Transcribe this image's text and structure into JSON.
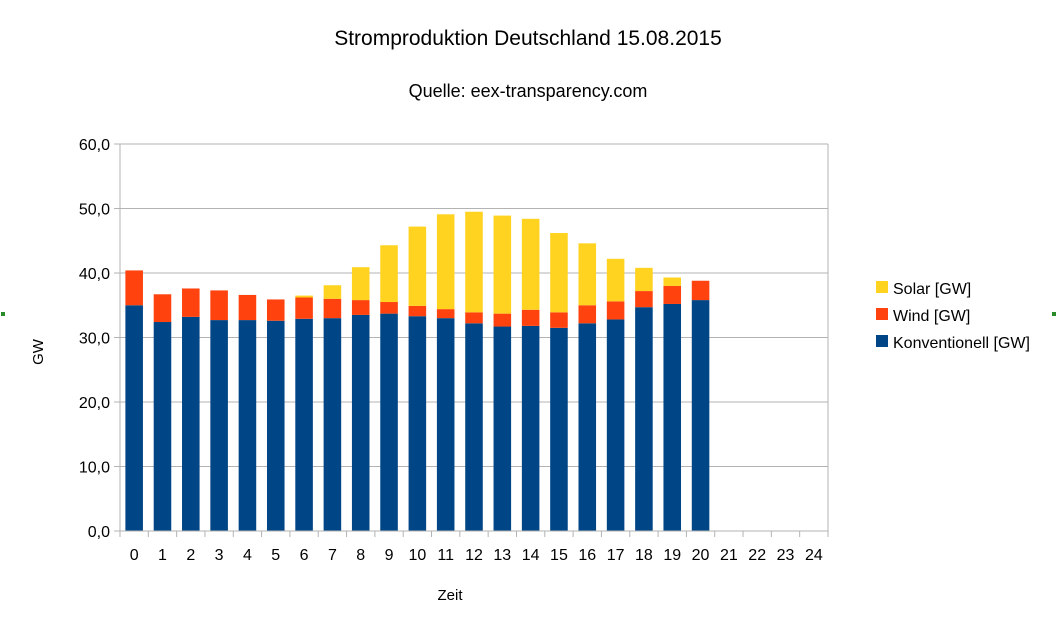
{
  "chart_data": {
    "type": "bar",
    "stacked": true,
    "title": "Stromproduktion Deutschland 15.08.2015",
    "subtitle": "Quelle: eex-transparency.com",
    "xlabel": "Zeit",
    "ylabel": "GW",
    "ylim": [
      0,
      60
    ],
    "ytick_step": 10,
    "yticks": [
      "0,0",
      "10,0",
      "20,0",
      "30,0",
      "40,0",
      "50,0",
      "60,0"
    ],
    "categories": [
      "0",
      "1",
      "2",
      "3",
      "4",
      "5",
      "6",
      "7",
      "8",
      "9",
      "10",
      "11",
      "12",
      "13",
      "14",
      "15",
      "16",
      "17",
      "18",
      "19",
      "20",
      "21",
      "22",
      "23",
      "24"
    ],
    "grid": true,
    "legend_position": "right",
    "series": [
      {
        "name": "Konventionell [GW]",
        "color": "#004586",
        "values": [
          35.0,
          32.4,
          33.2,
          32.7,
          32.7,
          32.6,
          32.9,
          33.0,
          33.5,
          33.7,
          33.3,
          33.0,
          32.2,
          31.7,
          31.8,
          31.5,
          32.2,
          32.8,
          34.7,
          35.2,
          35.8,
          null,
          null,
          null,
          null
        ]
      },
      {
        "name": "Wind [GW]",
        "color": "#ff420e",
        "values": [
          5.4,
          4.3,
          4.4,
          4.6,
          3.9,
          3.3,
          3.3,
          3.0,
          2.3,
          1.8,
          1.6,
          1.4,
          1.7,
          2.0,
          2.5,
          2.4,
          2.8,
          2.8,
          2.5,
          2.8,
          3.0,
          null,
          null,
          null,
          null
        ]
      },
      {
        "name": "Solar [GW]",
        "color": "#ffd320",
        "values": [
          0.0,
          0.0,
          0.0,
          0.0,
          0.0,
          0.0,
          0.3,
          2.1,
          5.1,
          8.8,
          12.3,
          14.7,
          15.6,
          15.2,
          14.1,
          12.3,
          9.6,
          6.6,
          3.6,
          1.3,
          0.0,
          null,
          null,
          null,
          null
        ]
      }
    ],
    "legend_order": [
      "Solar [GW]",
      "Wind [GW]",
      "Konventionell [GW]"
    ]
  }
}
